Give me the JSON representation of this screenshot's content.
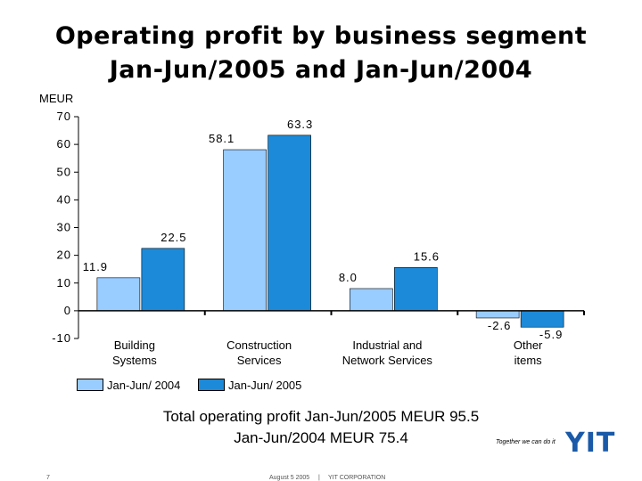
{
  "title": {
    "line1": "Operating profit by business segment",
    "line2": "Jan-Jun/2005 and Jan-Jun/2004"
  },
  "chart_data": {
    "type": "bar",
    "ylabel": "MEUR",
    "ylim": [
      -10,
      70
    ],
    "yticks": [
      -10,
      0,
      10,
      20,
      30,
      40,
      50,
      60,
      70
    ],
    "categories": [
      [
        "Building",
        "Systems"
      ],
      [
        "Construction",
        "Services"
      ],
      [
        "Industrial and",
        "Network Services"
      ],
      [
        "Other",
        "items"
      ]
    ],
    "series": [
      {
        "name": "Jan-Jun/ 2004",
        "values": [
          11.9,
          58.1,
          8.0,
          -2.6
        ],
        "labels": [
          "11.9",
          "58.1",
          "8.0",
          "-2.6"
        ],
        "color": "#99ccff"
      },
      {
        "name": "Jan-Jun/ 2005",
        "values": [
          22.5,
          63.3,
          15.6,
          -5.9
        ],
        "labels": [
          "22.5",
          "63.3",
          "15.6",
          "-5.9"
        ],
        "color": "#1c8ad8"
      }
    ],
    "legend_position": "bottom-left",
    "grid": false
  },
  "summary": {
    "line1": "Total operating profit Jan-Jun/2005 MEUR 95.5",
    "line2": "Jan-Jun/2004 MEUR 75.4"
  },
  "brand": {
    "tagline": "Together we can do it",
    "logo": "YIT",
    "color": "#1a5aa8"
  },
  "footer": {
    "page": "7",
    "date": "August 5 2005",
    "separator": "|",
    "company": "YIT CORPORATION"
  }
}
